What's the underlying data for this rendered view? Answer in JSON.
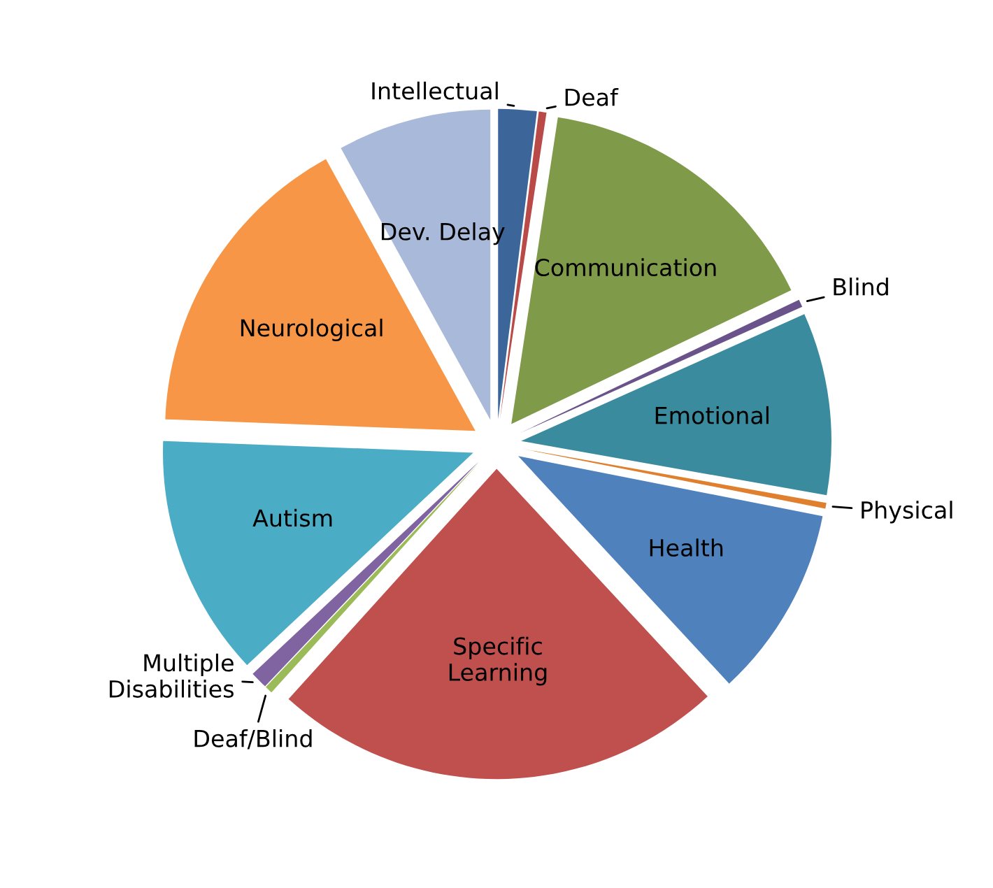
{
  "chart_data": {
    "type": "pie",
    "categories": [
      "Intellectual",
      "Deaf",
      "Communication",
      "Blind",
      "Emotional",
      "Physical",
      "Health",
      "Specific Learning",
      "Deaf/Blind",
      "Multiple Disabilities",
      "Autism",
      "Neurological",
      "Dev. Delay"
    ],
    "values": [
      2,
      0.4,
      15.5,
      0.4,
      9.5,
      0.3,
      10,
      23.6,
      0.4,
      0.9,
      12.6,
      16.4,
      8
    ],
    "colors": [
      "#3c6699",
      "#b94a48",
      "#7f9a48",
      "#6a528b",
      "#3a8b9e",
      "#e0802e",
      "#4f81bd",
      "#c0504d",
      "#9bbb59",
      "#8064a2",
      "#4bacc6",
      "#f79646",
      "#a9b9d9"
    ],
    "legend": false
  }
}
